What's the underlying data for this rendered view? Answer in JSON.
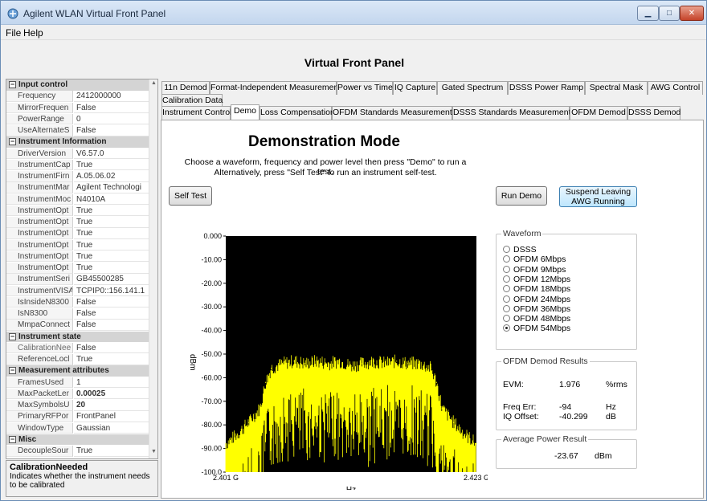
{
  "window": {
    "title": "Agilent WLAN Virtual Front Panel"
  },
  "menu": [
    {
      "label": "File"
    },
    {
      "label": "Help"
    }
  ],
  "page_title": "Virtual Front Panel",
  "property_grid": {
    "rows": [
      {
        "type": "category",
        "label": "Input control"
      },
      {
        "type": "prop",
        "name": "Frequency",
        "value": "2412000000"
      },
      {
        "type": "prop",
        "name": "MirrorFrequen",
        "value": "False"
      },
      {
        "type": "prop",
        "name": "PowerRange",
        "value": "0"
      },
      {
        "type": "prop",
        "name": "UseAlternateS",
        "value": "False"
      },
      {
        "type": "category",
        "label": "Instrument Information"
      },
      {
        "type": "prop",
        "name": "DriverVersion",
        "value": "V6.57.0"
      },
      {
        "type": "prop",
        "name": "InstrumentCap",
        "value": "True"
      },
      {
        "type": "prop",
        "name": "InstrumentFirn",
        "value": "A.05.06.02"
      },
      {
        "type": "prop",
        "name": "InstrumentMar",
        "value": "Agilent Technologi"
      },
      {
        "type": "prop",
        "name": "InstrumentMoc",
        "value": "N4010A"
      },
      {
        "type": "prop",
        "name": "InstrumentOpt",
        "value": "True"
      },
      {
        "type": "prop",
        "name": "InstrumentOpt",
        "value": "True"
      },
      {
        "type": "prop",
        "name": "InstrumentOpt",
        "value": "True"
      },
      {
        "type": "prop",
        "name": "InstrumentOpt",
        "value": "True"
      },
      {
        "type": "prop",
        "name": "InstrumentOpt",
        "value": "True"
      },
      {
        "type": "prop",
        "name": "InstrumentOpt",
        "value": "True"
      },
      {
        "type": "prop",
        "name": "InstrumentSeri",
        "value": "GB45500285"
      },
      {
        "type": "prop",
        "name": "InstrumentVISA",
        "value": "TCPIP0::156.141.1"
      },
      {
        "type": "prop",
        "name": "IsInsideN8300",
        "value": "False"
      },
      {
        "type": "prop",
        "name": "IsN8300",
        "value": "False"
      },
      {
        "type": "prop",
        "name": "MmpaConnect",
        "value": "False"
      },
      {
        "type": "category",
        "label": "Instrument state"
      },
      {
        "type": "prop",
        "name": "CalibrationNee",
        "value": "False",
        "readonly": true
      },
      {
        "type": "prop",
        "name": "ReferenceLocl",
        "value": "True"
      },
      {
        "type": "category",
        "label": "Measurement attributes"
      },
      {
        "type": "prop",
        "name": "FramesUsed",
        "value": "1"
      },
      {
        "type": "prop",
        "name": "MaxPacketLer",
        "value": "0.00025",
        "bold": true
      },
      {
        "type": "prop",
        "name": "MaxSymbolsU",
        "value": "20",
        "bold": true
      },
      {
        "type": "prop",
        "name": "PrimaryRFPor",
        "value": "FrontPanel"
      },
      {
        "type": "prop",
        "name": "WindowType",
        "value": "Gaussian"
      },
      {
        "type": "category",
        "label": "Misc"
      },
      {
        "type": "prop",
        "name": "DecoupleSour",
        "value": "True"
      }
    ],
    "description": {
      "title": "CalibrationNeeded",
      "text": "Indicates whether the instrument needs to be calibrated"
    }
  },
  "tabs_row1": [
    {
      "label": "11n Demod"
    },
    {
      "label": "Format-Independent Measurements"
    },
    {
      "label": "Power vs Time"
    },
    {
      "label": "IQ Capture"
    },
    {
      "label": "Gated Spectrum"
    },
    {
      "label": "DSSS Power Ramp"
    },
    {
      "label": "Spectral Mask"
    },
    {
      "label": "AWG Control"
    }
  ],
  "tabs_row2": [
    {
      "label": "Calibration Data"
    }
  ],
  "tabs_row3": [
    {
      "label": "Instrument Control"
    },
    {
      "label": "Demo",
      "active": true
    },
    {
      "label": "Loss Compensation"
    },
    {
      "label": "OFDM Standards Measurements"
    },
    {
      "label": "DSSS Standards Measurements"
    },
    {
      "label": "OFDM Demod"
    },
    {
      "label": "DSSS Demod"
    }
  ],
  "demo": {
    "title": "Demonstration Mode",
    "instruction1": "Choose a waveform, frequency and power level then press \"Demo\" to run a test.",
    "instruction2": "Alternatively, press \"Self Test\" to run an instrument self-test.",
    "self_test_label": "Self Test",
    "run_demo_label": "Run Demo",
    "suspend_label_line1": "Suspend Leaving",
    "suspend_label_line2": "AWG Running"
  },
  "waveform": {
    "title": "Waveform",
    "options": [
      "DSSS",
      "OFDM 6Mbps",
      "OFDM 9Mbps",
      "OFDM 12Mbps",
      "OFDM 18Mbps",
      "OFDM 24Mbps",
      "OFDM 36Mbps",
      "OFDM 48Mbps",
      "OFDM 54Mbps"
    ],
    "selected_index": 8
  },
  "ofdm_results": {
    "title": "OFDM Demod Results",
    "evm_label": "EVM:",
    "evm_value": "1.976",
    "evm_unit": "%rms",
    "freq_err_label": "Freq Err:",
    "freq_err_value": "-94",
    "freq_err_unit": "Hz",
    "iq_offset_label": "IQ Offset:",
    "iq_offset_value": "-40.299",
    "iq_offset_unit": "dB"
  },
  "power_result": {
    "title": "Average Power Result",
    "value": "-23.67",
    "unit": "dBm"
  },
  "chart_data": {
    "type": "line",
    "title": "",
    "xlabel": "Hz",
    "ylabel": "dBm",
    "xlim": [
      "2.401 G",
      "2.423 G"
    ],
    "ylim": [
      -100,
      0
    ],
    "yticks": [
      "0.000",
      "-10.00",
      "-20.00",
      "-30.00",
      "-40.00",
      "-50.00",
      "-60.00",
      "-70.00",
      "-80.00",
      "-90.00",
      "-100.0"
    ],
    "xticks": [
      "2.401 G",
      "2.423 G"
    ],
    "background": "#000000",
    "series": [
      {
        "color": "#ffff00",
        "x_mhz": [
          2401,
          2402,
          2403,
          2404,
          2404.5,
          2405,
          2406,
          2407,
          2408,
          2409,
          2410,
          2411,
          2412,
          2413,
          2414,
          2415,
          2416,
          2417,
          2418,
          2419,
          2419.5,
          2420,
          2421,
          2422,
          2423
        ],
        "y_dbm": [
          -88,
          -84,
          -79,
          -73,
          -62,
          -56,
          -54,
          -53,
          -54,
          -53,
          -54,
          -53,
          -55,
          -54,
          -53,
          -54,
          -53,
          -54,
          -54,
          -56,
          -62,
          -73,
          -79,
          -84,
          -88
        ]
      }
    ]
  }
}
